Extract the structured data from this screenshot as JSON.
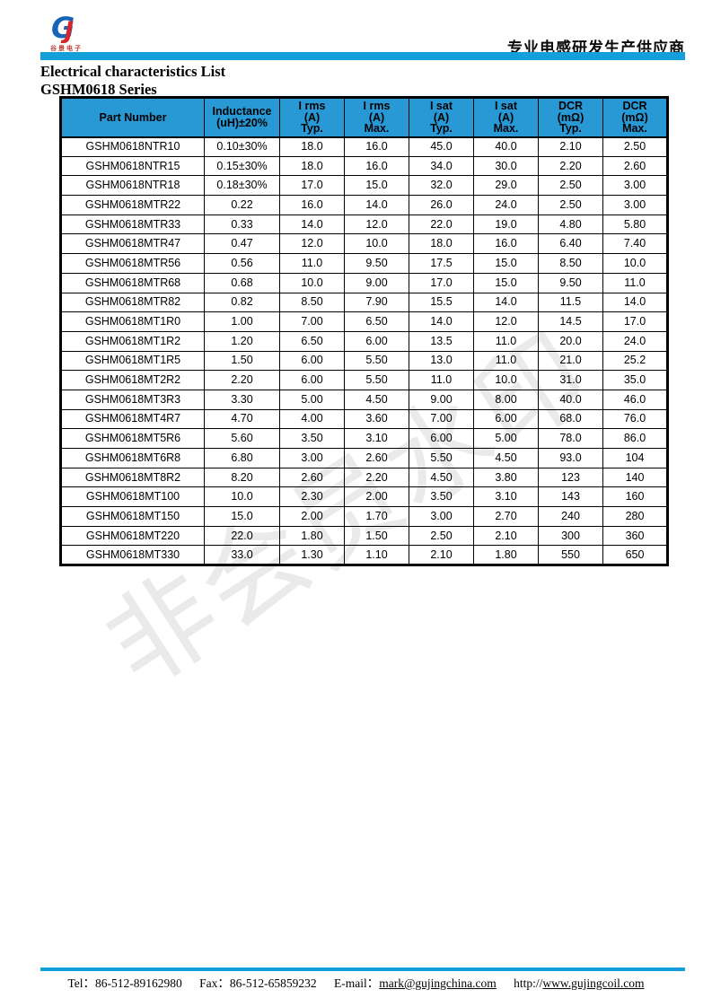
{
  "brand": {
    "logo_g": "G",
    "logo_j": "J",
    "caption": "谷景电子"
  },
  "header": {
    "slogan": "专业电感研发生产供应商"
  },
  "title": "Electrical characteristics List",
  "subtitle": "GSHM0618 Series",
  "watermark": "非会员水印",
  "table": {
    "columns": [
      [
        "Part Number"
      ],
      [
        "Inductance",
        "(uH)±20%"
      ],
      [
        "I rms",
        "(A)",
        "Typ."
      ],
      [
        "I rms",
        "(A)",
        "Max."
      ],
      [
        "I sat",
        "(A)",
        "Typ."
      ],
      [
        "I sat",
        "(A)",
        "Max."
      ],
      [
        "DCR",
        "(mΩ)",
        "Typ."
      ],
      [
        "DCR",
        "(mΩ)",
        "Max."
      ]
    ],
    "rows": [
      [
        "GSHM0618NTR10",
        "0.10±30%",
        "18.0",
        "16.0",
        "45.0",
        "40.0",
        "2.10",
        "2.50"
      ],
      [
        "GSHM0618NTR15",
        "0.15±30%",
        "18.0",
        "16.0",
        "34.0",
        "30.0",
        "2.20",
        "2.60"
      ],
      [
        "GSHM0618NTR18",
        "0.18±30%",
        "17.0",
        "15.0",
        "32.0",
        "29.0",
        "2.50",
        "3.00"
      ],
      [
        "GSHM0618MTR22",
        "0.22",
        "16.0",
        "14.0",
        "26.0",
        "24.0",
        "2.50",
        "3.00"
      ],
      [
        "GSHM0618MTR33",
        "0.33",
        "14.0",
        "12.0",
        "22.0",
        "19.0",
        "4.80",
        "5.80"
      ],
      [
        "GSHM0618MTR47",
        "0.47",
        "12.0",
        "10.0",
        "18.0",
        "16.0",
        "6.40",
        "7.40"
      ],
      [
        "GSHM0618MTR56",
        "0.56",
        "11.0",
        "9.50",
        "17.5",
        "15.0",
        "8.50",
        "10.0"
      ],
      [
        "GSHM0618MTR68",
        "0.68",
        "10.0",
        "9.00",
        "17.0",
        "15.0",
        "9.50",
        "11.0"
      ],
      [
        "GSHM0618MTR82",
        "0.82",
        "8.50",
        "7.90",
        "15.5",
        "14.0",
        "11.5",
        "14.0"
      ],
      [
        "GSHM0618MT1R0",
        "1.00",
        "7.00",
        "6.50",
        "14.0",
        "12.0",
        "14.5",
        "17.0"
      ],
      [
        "GSHM0618MT1R2",
        "1.20",
        "6.50",
        "6.00",
        "13.5",
        "11.0",
        "20.0",
        "24.0"
      ],
      [
        "GSHM0618MT1R5",
        "1.50",
        "6.00",
        "5.50",
        "13.0",
        "11.0",
        "21.0",
        "25.2"
      ],
      [
        "GSHM0618MT2R2",
        "2.20",
        "6.00",
        "5.50",
        "11.0",
        "10.0",
        "31.0",
        "35.0"
      ],
      [
        "GSHM0618MT3R3",
        "3.30",
        "5.00",
        "4.50",
        "9.00",
        "8.00",
        "40.0",
        "46.0"
      ],
      [
        "GSHM0618MT4R7",
        "4.70",
        "4.00",
        "3.60",
        "7.00",
        "6.00",
        "68.0",
        "76.0"
      ],
      [
        "GSHM0618MT5R6",
        "5.60",
        "3.50",
        "3.10",
        "6.00",
        "5.00",
        "78.0",
        "86.0"
      ],
      [
        "GSHM0618MT6R8",
        "6.80",
        "3.00",
        "2.60",
        "5.50",
        "4.50",
        "93.0",
        "104"
      ],
      [
        "GSHM0618MT8R2",
        "8.20",
        "2.60",
        "2.20",
        "4.50",
        "3.80",
        "123",
        "140"
      ],
      [
        "GSHM0618MT100",
        "10.0",
        "2.30",
        "2.00",
        "3.50",
        "3.10",
        "143",
        "160"
      ],
      [
        "GSHM0618MT150",
        "15.0",
        "2.00",
        "1.70",
        "3.00",
        "2.70",
        "240",
        "280"
      ],
      [
        "GSHM0618MT220",
        "22.0",
        "1.80",
        "1.50",
        "2.50",
        "2.10",
        "300",
        "360"
      ],
      [
        "GSHM0618MT330",
        "33.0",
        "1.30",
        "1.10",
        "2.10",
        "1.80",
        "550",
        "650"
      ]
    ]
  },
  "footer": {
    "tel_label": "Tel：",
    "tel": "86-512-89162980",
    "fax_label": "Fax：",
    "fax": "86-512-65859232",
    "email_label": "E-mail：",
    "email": "mark@gujingchina.com",
    "url_prefix": "http://",
    "url": "www.gujingcoil.com"
  },
  "colors": {
    "top_bar_blue": "#149fdb",
    "header_blue": "#2899d5",
    "logo_blue": "#1663b8",
    "logo_red": "#d8252b",
    "watermark_gray": "#eaeaea"
  }
}
